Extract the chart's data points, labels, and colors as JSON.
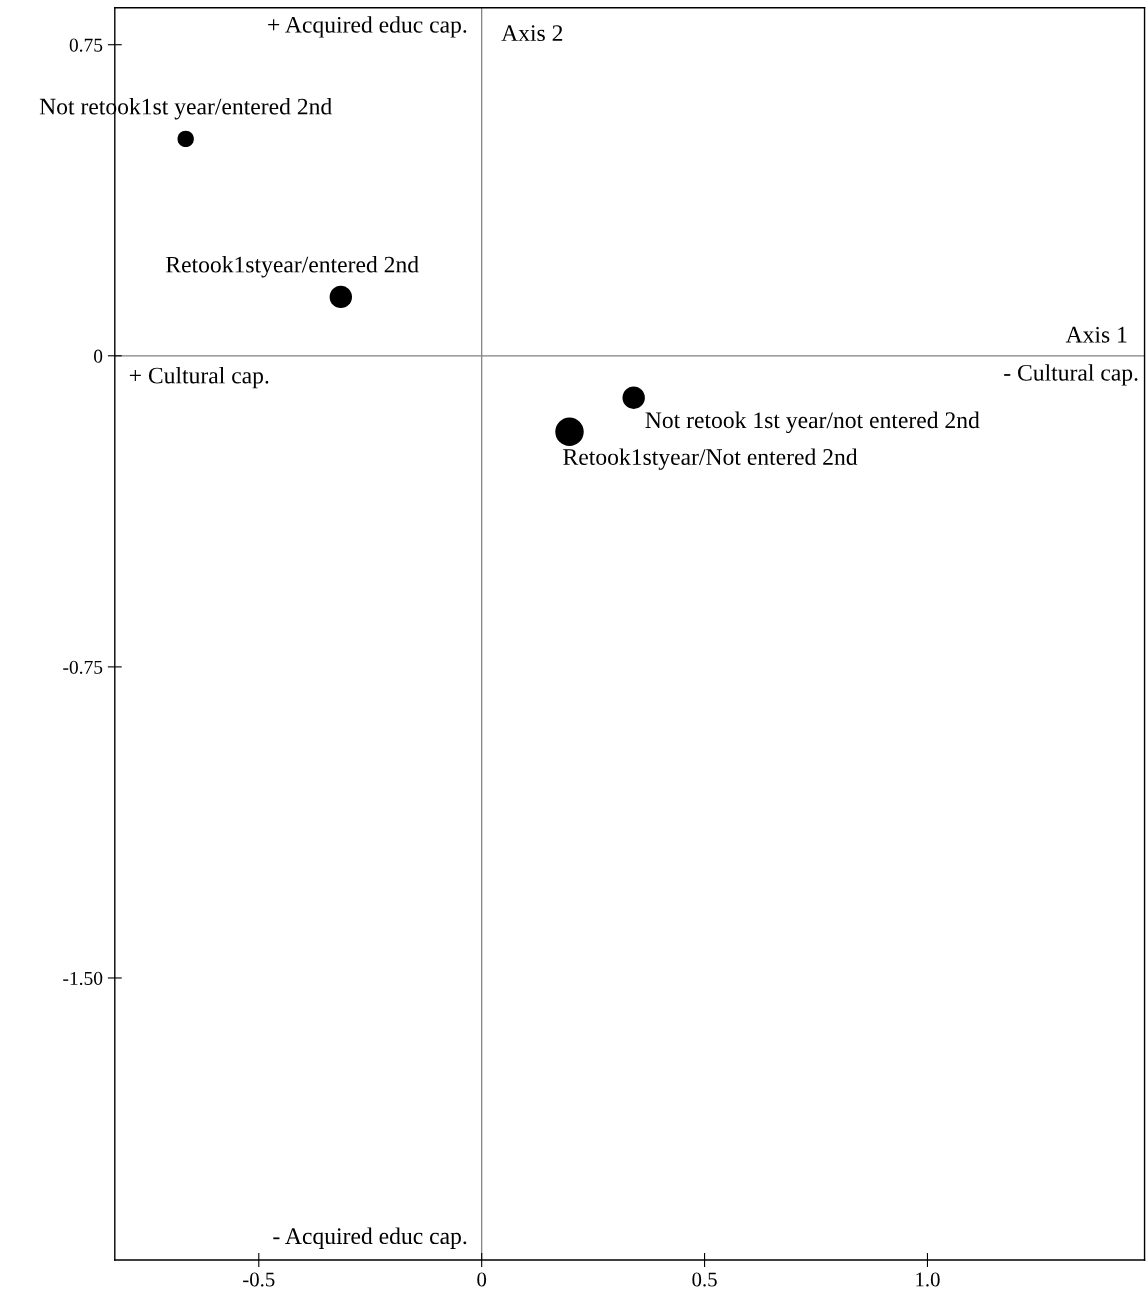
{
  "chart_data": {
    "type": "bubble",
    "series": [
      {
        "name": "Not retook1st year/entered 2nd",
        "color": "#000000",
        "x": [
          -0.664
        ],
        "values": [
          0.523
        ],
        "sizes": [
          0.33
        ]
      },
      {
        "name": "Retook1styear/entered 2nd",
        "color": "#000000",
        "x": [
          -0.316
        ],
        "values": [
          0.142
        ],
        "sizes": [
          0.62
        ]
      },
      {
        "name": "Not retook 1st year/not entered 2nd",
        "color": "#000000",
        "x": [
          0.341
        ],
        "values": [
          -0.101
        ],
        "sizes": [
          0.62
        ]
      },
      {
        "name": "Retook1styear/Not entered 2nd",
        "color": "#000000",
        "x": [
          0.197
        ],
        "values": [
          -0.183
        ],
        "sizes": [
          1
        ]
      }
    ],
    "xlim": [
      -0.823,
      1.487
    ],
    "ylim": [
      -2.18,
      0.839
    ],
    "xticks": [
      {
        "value": -0.5,
        "label": "-0.5"
      },
      0,
      0.5,
      {
        "value": 1.0,
        "label": "1.0"
      }
    ],
    "yticks": [
      {
        "value": 0.75,
        "label": "0.75"
      },
      0,
      {
        "value": -0.75,
        "label": "-0.75"
      },
      {
        "value": -1.5,
        "label": "-1.50"
      }
    ],
    "ref_lines": [
      {
        "axis": "x",
        "value": 0,
        "label": "Axis 2",
        "color": "#808080"
      },
      {
        "axis": "y",
        "value": 0,
        "label": "Axis 1",
        "color": "#808080"
      }
    ],
    "annotations": [
      "+ Acquired educ cap.",
      "+ Cultural cap.",
      "- Cultural cap.",
      "- Acquired educ cap."
    ],
    "grid": false,
    "legend": false,
    "marker": "circle"
  }
}
